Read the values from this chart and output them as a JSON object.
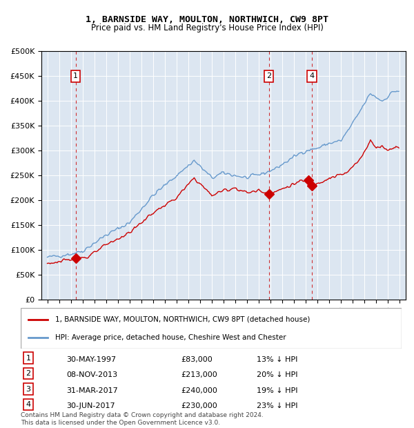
{
  "title": "1, BARNSIDE WAY, MOULTON, NORTHWICH, CW9 8PT",
  "subtitle": "Price paid vs. HM Land Registry's House Price Index (HPI)",
  "hpi_color": "#6699cc",
  "price_color": "#cc0000",
  "background_color": "#dce6f1",
  "plot_bg": "#dce6f1",
  "transactions": [
    {
      "num": 1,
      "date_str": "30-MAY-1997",
      "date_x": 1997.41,
      "price": 83000,
      "label": "1",
      "vline_color": "#cc0000"
    },
    {
      "num": 2,
      "date_str": "08-NOV-2013",
      "date_x": 2013.85,
      "price": 213000,
      "label": "2",
      "vline_color": "#cc0000"
    },
    {
      "num": 3,
      "date_str": "31-MAR-2017",
      "date_x": 2017.25,
      "price": 240000,
      "label": "3",
      "vline_color": "#cc0000"
    },
    {
      "num": 4,
      "date_str": "30-JUN-2017",
      "date_x": 2017.5,
      "price": 230000,
      "label": "4",
      "vline_color": "#cc0000"
    }
  ],
  "table_rows": [
    {
      "num": 1,
      "date": "30-MAY-1997",
      "price": "£83,000",
      "hpi_pct": "13% ↓ HPI"
    },
    {
      "num": 2,
      "date": "08-NOV-2013",
      "price": "£213,000",
      "hpi_pct": "20% ↓ HPI"
    },
    {
      "num": 3,
      "date": "31-MAR-2017",
      "price": "£240,000",
      "hpi_pct": "19% ↓ HPI"
    },
    {
      "num": 4,
      "date": "30-JUN-2017",
      "price": "£230,000",
      "hpi_pct": "23% ↓ HPI"
    }
  ],
  "legend_entry1": "1, BARNSIDE WAY, MOULTON, NORTHWICH, CW9 8PT (detached house)",
  "legend_entry2": "HPI: Average price, detached house, Cheshire West and Chester",
  "footnote": "Contains HM Land Registry data © Crown copyright and database right 2024.\nThis data is licensed under the Open Government Licence v3.0.",
  "ylim": [
    0,
    500000
  ],
  "yticks": [
    0,
    50000,
    100000,
    150000,
    200000,
    250000,
    300000,
    350000,
    400000,
    450000,
    500000
  ],
  "xlim_start": 1994.5,
  "xlim_end": 2025.5
}
